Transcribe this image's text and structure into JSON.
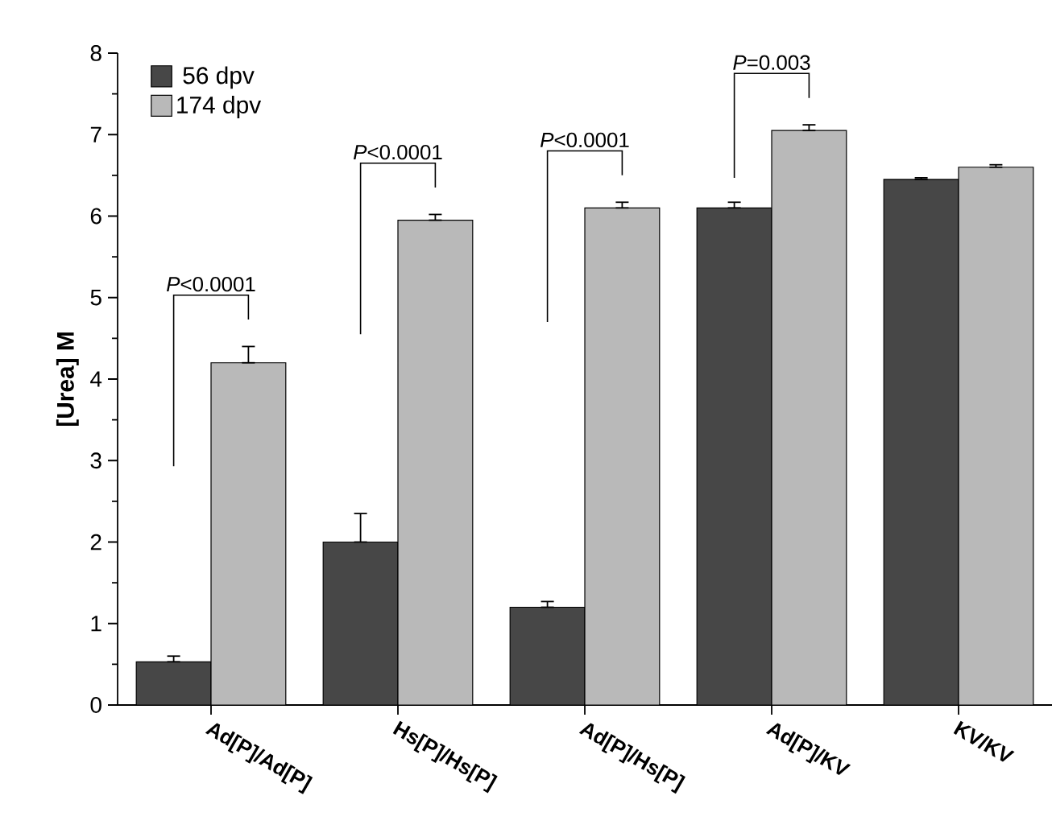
{
  "chart_data": {
    "type": "bar",
    "ylabel": "[Urea] M",
    "categories": [
      "Ad[P]/Ad[P]",
      "Hs[P]/Hs[P]",
      "Ad[P]/Hs[P]",
      "Ad[P]/KV",
      "KV/KV"
    ],
    "series": [
      {
        "name": "56 dpv",
        "color": "#474747",
        "values": [
          0.53,
          2.0,
          1.2,
          6.1,
          6.45
        ],
        "errors": [
          [
            0.53,
            0.6
          ],
          [
            2.0,
            2.35
          ],
          [
            1.2,
            1.27
          ],
          [
            6.1,
            6.17
          ],
          [
            6.45,
            6.47
          ]
        ]
      },
      {
        "name": "174 dpv",
        "color": "#b9b9b9",
        "values": [
          4.2,
          5.95,
          6.1,
          7.05,
          6.6
        ],
        "errors": [
          [
            4.2,
            4.4
          ],
          [
            5.95,
            6.02
          ],
          [
            6.1,
            6.17
          ],
          [
            7.05,
            7.12
          ],
          [
            6.6,
            6.63
          ]
        ]
      }
    ],
    "ylim": [
      0,
      8
    ],
    "yticks": [
      0,
      1,
      2,
      3,
      4,
      5,
      6,
      7,
      8
    ],
    "grid": false,
    "legend": "top left",
    "annotations": [
      "*P*<0.0001",
      "*P*<0.0001",
      "*P*<0.0001",
      "*P*=0.003"
    ]
  }
}
